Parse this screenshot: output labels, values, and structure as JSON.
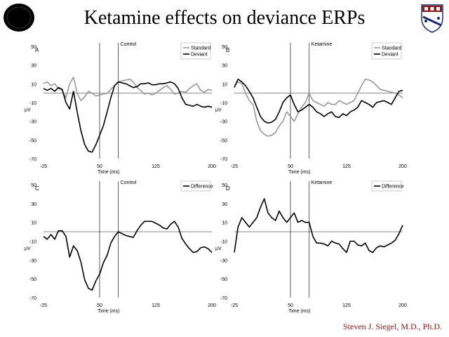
{
  "slide": {
    "title": "Ketamine effects on deviance ERPs",
    "author": "Steven J. Siegel, M.D., Ph.D."
  },
  "logos": {
    "left": "seal-logo",
    "right": "university-shield-logo"
  },
  "colors": {
    "standard": "#999999",
    "deviant": "#000000",
    "difference": "#000000",
    "author": "#8b1a1a"
  },
  "chart_data": [
    {
      "panel": "A",
      "title": "Control",
      "type": "line",
      "xlabel": "Time (ms)",
      "ylabel": "µV",
      "xlim": [
        -25,
        200
      ],
      "ylim": [
        -70,
        50
      ],
      "xticks": [
        -25,
        50,
        125,
        200
      ],
      "yticks": [
        50,
        30,
        10,
        -10,
        -30,
        -50,
        -70
      ],
      "vlines": [
        50,
        75
      ],
      "legend_position": "top-right",
      "series": [
        {
          "name": "Standard",
          "color": "#999999",
          "x": [
            -25,
            -20,
            -15,
            -10,
            -5,
            0,
            5,
            10,
            15,
            20,
            25,
            30,
            35,
            40,
            45,
            50,
            55,
            60,
            65,
            70,
            75,
            80,
            85,
            90,
            95,
            100,
            105,
            110,
            115,
            120,
            125,
            130,
            135,
            140,
            145,
            150,
            155,
            160,
            165,
            170,
            175,
            180,
            185,
            190,
            195,
            200
          ],
          "y": [
            10,
            12,
            8,
            10,
            5,
            3,
            -5,
            10,
            17,
            0,
            -8,
            -4,
            2,
            0,
            -3,
            -2,
            -1,
            0,
            4,
            8,
            12,
            13,
            14,
            15,
            12,
            6,
            3,
            -1,
            0,
            -2,
            0,
            3,
            6,
            8,
            4,
            -1,
            0,
            2,
            1,
            5,
            8,
            10,
            3,
            1,
            4,
            3
          ]
        },
        {
          "name": "Deviant",
          "color": "#000000",
          "x": [
            -25,
            -20,
            -15,
            -10,
            -5,
            0,
            5,
            10,
            15,
            20,
            25,
            30,
            35,
            40,
            45,
            50,
            55,
            60,
            65,
            70,
            75,
            80,
            85,
            90,
            95,
            100,
            105,
            110,
            115,
            120,
            125,
            130,
            135,
            140,
            145,
            150,
            155,
            160,
            165,
            170,
            175,
            180,
            185,
            190,
            195,
            200
          ],
          "y": [
            5,
            3,
            5,
            2,
            6,
            4,
            -10,
            -17,
            2,
            -20,
            -40,
            -55,
            -62,
            -63,
            -55,
            -45,
            -35,
            -20,
            -5,
            8,
            12,
            11,
            10,
            8,
            6,
            7,
            10,
            10,
            11,
            9,
            9,
            10,
            10,
            11,
            12,
            10,
            5,
            -5,
            -12,
            -13,
            -14,
            -12,
            -14,
            -15,
            -14,
            -15
          ]
        }
      ]
    },
    {
      "panel": "B",
      "title": "Ketamine",
      "type": "line",
      "xlabel": "Time (ms)",
      "ylabel": "µV",
      "xlim": [
        -25,
        200
      ],
      "ylim": [
        -70,
        50
      ],
      "xticks": [
        -25,
        50,
        125,
        200
      ],
      "yticks": [
        50,
        30,
        10,
        -10,
        -30,
        -50,
        -70
      ],
      "vlines": [
        50,
        75
      ],
      "legend_position": "top-right",
      "series": [
        {
          "name": "Standard",
          "color": "#999999",
          "x": [
            -25,
            -20,
            -15,
            -10,
            -5,
            0,
            5,
            10,
            15,
            20,
            25,
            30,
            35,
            40,
            45,
            50,
            55,
            60,
            65,
            70,
            75,
            80,
            85,
            90,
            95,
            100,
            105,
            110,
            115,
            120,
            125,
            130,
            135,
            140,
            145,
            150,
            155,
            160,
            165,
            170,
            175,
            180,
            185,
            190,
            195,
            200
          ],
          "y": [
            8,
            12,
            10,
            0,
            -8,
            -12,
            -30,
            -40,
            -44,
            -46,
            -45,
            -42,
            -35,
            -30,
            -20,
            -25,
            -30,
            -22,
            -15,
            -10,
            0,
            -8,
            -10,
            -12,
            -14,
            -10,
            -12,
            -12,
            -8,
            -10,
            -12,
            -10,
            -8,
            0,
            8,
            15,
            14,
            12,
            8,
            4,
            3,
            2,
            1,
            0,
            -2,
            -5
          ]
        },
        {
          "name": "Deviant",
          "color": "#000000",
          "x": [
            -25,
            -20,
            -15,
            -10,
            -5,
            0,
            5,
            10,
            15,
            20,
            25,
            30,
            35,
            40,
            45,
            50,
            55,
            60,
            65,
            70,
            75,
            80,
            85,
            90,
            95,
            100,
            105,
            110,
            115,
            120,
            125,
            130,
            135,
            140,
            145,
            150,
            155,
            160,
            165,
            170,
            175,
            180,
            185,
            190,
            195,
            200
          ],
          "y": [
            6,
            15,
            12,
            8,
            2,
            -5,
            -15,
            -25,
            -30,
            -32,
            -31,
            -28,
            -20,
            -10,
            -5,
            -2,
            -12,
            -20,
            -18,
            -15,
            -12,
            -15,
            -20,
            -22,
            -25,
            -22,
            -20,
            -25,
            -26,
            -22,
            -24,
            -20,
            -18,
            -15,
            -8,
            -10,
            -12,
            -15,
            -10,
            -9,
            -8,
            -10,
            -12,
            -5,
            2,
            3
          ]
        }
      ]
    },
    {
      "panel": "C",
      "title": "Control",
      "type": "line",
      "xlabel": "Time (ms)",
      "ylabel": "µV",
      "xlim": [
        -25,
        200
      ],
      "ylim": [
        -70,
        50
      ],
      "xticks": [
        -25,
        50,
        125,
        200
      ],
      "yticks": [
        50,
        30,
        10,
        -10,
        -30,
        -50,
        -70
      ],
      "vlines": [
        50,
        75
      ],
      "legend_position": "top-right",
      "series": [
        {
          "name": "Difference",
          "color": "#000000",
          "x": [
            -25,
            -20,
            -15,
            -10,
            -5,
            0,
            5,
            10,
            15,
            20,
            25,
            30,
            35,
            40,
            45,
            50,
            55,
            60,
            65,
            70,
            75,
            80,
            85,
            90,
            95,
            100,
            105,
            110,
            115,
            120,
            125,
            130,
            135,
            140,
            145,
            150,
            155,
            160,
            165,
            170,
            175,
            180,
            185,
            190,
            195,
            200
          ],
          "y": [
            -5,
            -8,
            -3,
            -8,
            1,
            1,
            -5,
            -27,
            -15,
            -20,
            -32,
            -51,
            -60,
            -62,
            -52,
            -45,
            -33,
            -25,
            -12,
            -5,
            0,
            -2,
            -4,
            -5,
            -6,
            1,
            7,
            11,
            11,
            11,
            9,
            7,
            4,
            3,
            8,
            11,
            5,
            -7,
            -13,
            -18,
            -22,
            -21,
            -17,
            -16,
            -18,
            -22
          ]
        }
      ]
    },
    {
      "panel": "D",
      "title": "Ketamine",
      "type": "line",
      "xlabel": "Time (ms)",
      "ylabel": "µV",
      "xlim": [
        -25,
        200
      ],
      "ylim": [
        -70,
        50
      ],
      "xticks": [
        -25,
        50,
        125,
        200
      ],
      "yticks": [
        50,
        30,
        10,
        -10,
        -30,
        -50,
        -70
      ],
      "vlines": [
        50,
        75
      ],
      "legend_position": "top-right",
      "series": [
        {
          "name": "Difference",
          "color": "#000000",
          "x": [
            -25,
            -20,
            -15,
            -10,
            -5,
            0,
            5,
            10,
            15,
            20,
            25,
            30,
            35,
            40,
            45,
            50,
            55,
            60,
            65,
            70,
            75,
            80,
            85,
            90,
            95,
            100,
            105,
            110,
            115,
            120,
            125,
            130,
            135,
            140,
            145,
            150,
            155,
            160,
            165,
            170,
            175,
            180,
            185,
            190,
            195,
            200
          ],
          "y": [
            -22,
            5,
            15,
            10,
            5,
            10,
            15,
            26,
            35,
            20,
            15,
            12,
            22,
            15,
            10,
            15,
            20,
            10,
            12,
            10,
            10,
            -5,
            -12,
            -12,
            -13,
            -15,
            -10,
            -12,
            -13,
            -18,
            -22,
            -10,
            -10,
            -14,
            -15,
            -12,
            -20,
            -22,
            -17,
            -15,
            -16,
            -14,
            -12,
            -9,
            -2,
            7
          ]
        }
      ]
    }
  ]
}
